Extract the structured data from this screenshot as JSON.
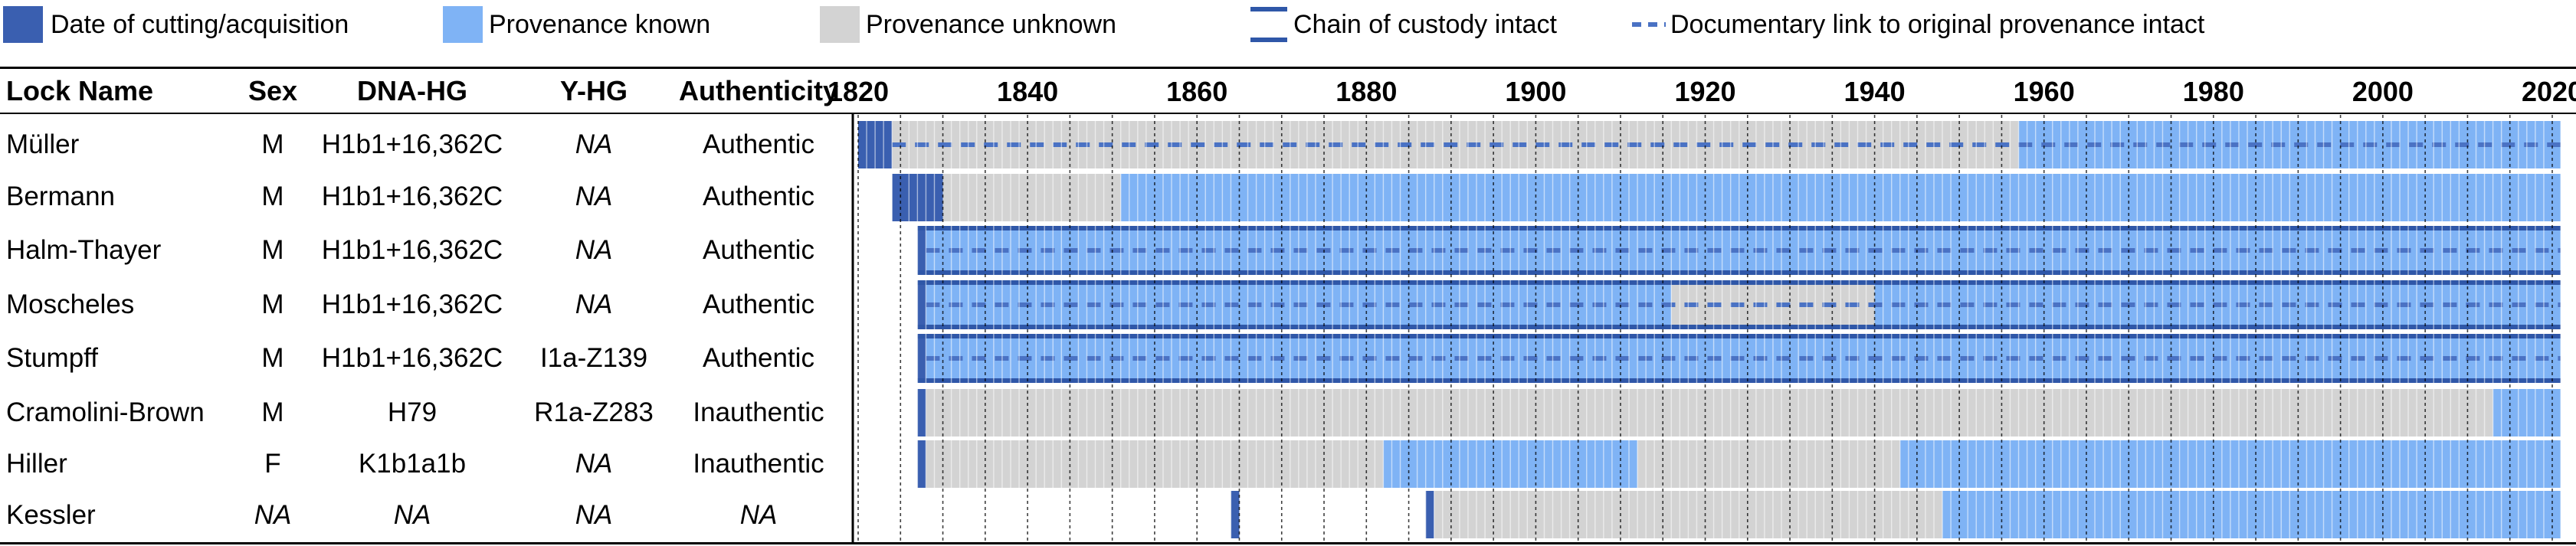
{
  "legend": {
    "date_label": "Date of cutting/acquisition",
    "known_label": "Provenance known",
    "unknown_label": "Provenance unknown",
    "custody_label": "Chain of custody intact",
    "doclink_label": "Documentary link to original provenance intact"
  },
  "columns": {
    "lock_name": "Lock Name",
    "sex": "Sex",
    "dna_hg": "DNA-HG",
    "y_hg": "Y-HG",
    "authenticity": "Authenticity"
  },
  "colors": {
    "date": "#3a5fb0",
    "known": "#7fb3f5",
    "unknown": "#d3d3d3",
    "custody": "#2f57a8",
    "doclink": "#4a72c4"
  },
  "years": [
    "1820",
    "1840",
    "1860",
    "1880",
    "1900",
    "1920",
    "1940",
    "1960",
    "1980",
    "2000",
    "2020"
  ],
  "rows": [
    {
      "name": "Müller",
      "sex": "M",
      "dna": "H1b1+16,362C",
      "y": "NA",
      "auth": "Authentic"
    },
    {
      "name": "Bermann",
      "sex": "M",
      "dna": "H1b1+16,362C",
      "y": "NA",
      "auth": "Authentic"
    },
    {
      "name": "Halm-Thayer",
      "sex": "M",
      "dna": "H1b1+16,362C",
      "y": "NA",
      "auth": "Authentic"
    },
    {
      "name": "Moscheles",
      "sex": "M",
      "dna": "H1b1+16,362C",
      "y": "NA",
      "auth": "Authentic"
    },
    {
      "name": "Stumpff",
      "sex": "M",
      "dna": "H1b1+16,362C",
      "y": "I1a-Z139",
      "auth": "Authentic"
    },
    {
      "name": "Cramolini-Brown",
      "sex": "M",
      "dna": "H79",
      "y": "R1a-Z283",
      "auth": "Inauthentic"
    },
    {
      "name": "Hiller",
      "sex": "F",
      "dna": "K1b1a1b",
      "y": "NA",
      "auth": "Inauthentic"
    },
    {
      "name": "Kessler",
      "sex": "NA",
      "dna": "NA",
      "y": "NA",
      "auth": "NA"
    }
  ],
  "chart_data": {
    "type": "gantt",
    "x_axis": {
      "range": [
        1820,
        2020
      ],
      "ticks": [
        1820,
        1840,
        1860,
        1880,
        1900,
        1920,
        1940,
        1960,
        1980,
        2000,
        2020
      ]
    },
    "rows": [
      {
        "name": "Müller",
        "date_cut": [
          1820,
          1824
        ],
        "segments": [
          {
            "status": "unknown",
            "from": 1824,
            "to": 1957
          },
          {
            "status": "known",
            "from": 1957,
            "to": 2021
          }
        ],
        "custody": null,
        "doclink": [
          1824,
          2021
        ]
      },
      {
        "name": "Bermann",
        "date_cut": [
          1824,
          1830
        ],
        "segments": [
          {
            "status": "unknown",
            "from": 1830,
            "to": 1851
          },
          {
            "status": "known",
            "from": 1851,
            "to": 2021
          }
        ],
        "custody": null,
        "doclink": null
      },
      {
        "name": "Halm-Thayer",
        "date_cut": [
          1827,
          1828
        ],
        "segments": [
          {
            "status": "known",
            "from": 1828,
            "to": 2021
          }
        ],
        "custody": [
          1827,
          2021
        ],
        "doclink": [
          1828,
          2021
        ]
      },
      {
        "name": "Moscheles",
        "date_cut": [
          1827,
          1828
        ],
        "segments": [
          {
            "status": "known",
            "from": 1828,
            "to": 1916
          },
          {
            "status": "unknown",
            "from": 1916,
            "to": 1940
          },
          {
            "status": "known",
            "from": 1940,
            "to": 2021
          }
        ],
        "custody": [
          1827,
          2021
        ],
        "doclink": [
          1828,
          2021
        ]
      },
      {
        "name": "Stumpff",
        "date_cut": [
          1827,
          1828
        ],
        "segments": [
          {
            "status": "known",
            "from": 1828,
            "to": 2021
          }
        ],
        "custody": [
          1827,
          2021
        ],
        "doclink": [
          1828,
          2021
        ]
      },
      {
        "name": "Cramolini-Brown",
        "date_cut": [
          1827,
          1828
        ],
        "segments": [
          {
            "status": "unknown",
            "from": 1828,
            "to": 2013
          },
          {
            "status": "known",
            "from": 2013,
            "to": 2021
          }
        ],
        "custody": null,
        "doclink": null
      },
      {
        "name": "Hiller",
        "date_cut": [
          1827,
          1828
        ],
        "segments": [
          {
            "status": "unknown",
            "from": 1828,
            "to": 1882
          },
          {
            "status": "known",
            "from": 1882,
            "to": 1912
          },
          {
            "status": "unknown",
            "from": 1912,
            "to": 1943
          },
          {
            "status": "known",
            "from": 1943,
            "to": 2021
          }
        ],
        "custody": null,
        "doclink": null
      },
      {
        "name": "Kessler",
        "date_cut": [
          1864,
          1865
        ],
        "date_cut2": [
          1887,
          1888
        ],
        "segments": [
          {
            "status": "unknown",
            "from": 1888,
            "to": 1948
          },
          {
            "status": "known",
            "from": 1948,
            "to": 2021
          }
        ],
        "custody": null,
        "doclink": null
      }
    ]
  }
}
